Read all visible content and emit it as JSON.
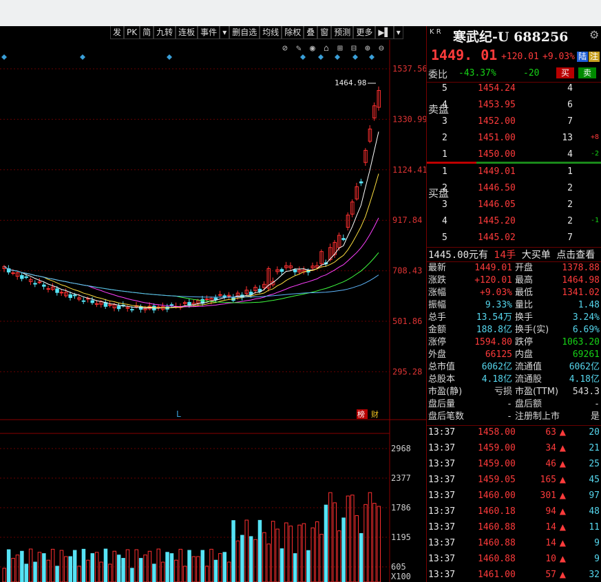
{
  "toolbar": [
    "发",
    "PK",
    "简",
    "九转",
    "连板",
    "事件",
    "▾",
    "删自选",
    "均线",
    "除权",
    "叠",
    "窗",
    "预测",
    "更多",
    "▶▌",
    "▾"
  ],
  "chart": {
    "price_axis": [
      "1537.56",
      "1330.99",
      "1124.41",
      "917.84",
      "708.43",
      "501.86",
      "295.28"
    ],
    "high_label": "1464.98",
    "marker_L": "L",
    "tag_bang": "榜",
    "tag_cai": "财",
    "vol_axis": [
      "2968",
      "2377",
      "1786",
      "1195",
      "605",
      "X100"
    ],
    "colors": {
      "up": "#ff3030",
      "down": "#56e3f5",
      "ma5": "#ffffff",
      "ma10": "#ffe040",
      "ma20": "#ff40ff",
      "ma60": "#40ff40",
      "ma120": "#5fb8ff"
    }
  },
  "header": {
    "kr": "K\nR",
    "name": "寒武纪-U 688256",
    "price": "1449. 01",
    "change": "+120.01",
    "pct": "+9.03%",
    "badge1": "陆",
    "badge2": "注",
    "wei_label": "委比",
    "wei_pct": "-43.37%",
    "wei_diff": "-20",
    "buy_btn": "买",
    "sell_btn": "卖"
  },
  "sell_label": "卖盘",
  "buy_label": "买盘",
  "sell_orders": [
    {
      "lvl": "5",
      "price": "1454.24",
      "vol": "4",
      "chg": ""
    },
    {
      "lvl": "4",
      "price": "1453.95",
      "vol": "6",
      "chg": ""
    },
    {
      "lvl": "3",
      "price": "1452.00",
      "vol": "7",
      "chg": ""
    },
    {
      "lvl": "2",
      "price": "1451.00",
      "vol": "13",
      "chg": "+8"
    },
    {
      "lvl": "1",
      "price": "1450.00",
      "vol": "4",
      "chg": "-2"
    }
  ],
  "buy_orders": [
    {
      "lvl": "1",
      "price": "1449.01",
      "vol": "1",
      "chg": ""
    },
    {
      "lvl": "2",
      "price": "1446.50",
      "vol": "2",
      "chg": ""
    },
    {
      "lvl": "3",
      "price": "1446.05",
      "vol": "2",
      "chg": ""
    },
    {
      "lvl": "4",
      "price": "1445.20",
      "vol": "2",
      "chg": "-1"
    },
    {
      "lvl": "5",
      "price": "1445.02",
      "vol": "7",
      "chg": ""
    }
  ],
  "big_order": {
    "price": "1445.00元有",
    "qty": "14手",
    "type": "大买单",
    "link": "点击查看"
  },
  "stats": [
    [
      "最新",
      "1449.01",
      "开盘",
      "1378.88"
    ],
    [
      "涨跌",
      "+120.01",
      "最高",
      "1464.98"
    ],
    [
      "涨幅",
      "+9.03%",
      "最低",
      "1341.02"
    ],
    [
      "振幅",
      "9.33%",
      "量比",
      "1.48"
    ],
    [
      "总手",
      "13.54万",
      "换手",
      "3.24%"
    ],
    [
      "金额",
      "188.8亿",
      "换手(实)",
      "6.69%"
    ],
    [
      "涨停",
      "1594.80",
      "跌停",
      "1063.20"
    ],
    [
      "外盘",
      "66125",
      "内盘",
      "69261"
    ],
    [
      "总市值",
      "6062亿",
      "流通值",
      "6062亿"
    ],
    [
      "总股本",
      "4.18亿",
      "流通股",
      "4.18亿"
    ],
    [
      "市盈(静)",
      "亏损",
      "市盈(TTM)",
      "543.3"
    ],
    [
      "盘后量",
      "-",
      "盘后额",
      "-"
    ],
    [
      "盘后笔数",
      "-",
      "注册制上市",
      "是"
    ]
  ],
  "ticks": [
    {
      "time": "13:37",
      "price": "1458.00",
      "vol": "63",
      "num": "20"
    },
    {
      "time": "13:37",
      "price": "1459.00",
      "vol": "34",
      "num": "21"
    },
    {
      "time": "13:37",
      "price": "1459.00",
      "vol": "46",
      "num": "25"
    },
    {
      "time": "13:37",
      "price": "1459.05",
      "vol": "165",
      "num": "45"
    },
    {
      "time": "13:37",
      "price": "1460.00",
      "vol": "301",
      "num": "97"
    },
    {
      "time": "13:37",
      "price": "1460.18",
      "vol": "94",
      "num": "48"
    },
    {
      "time": "13:37",
      "price": "1460.88",
      "vol": "14",
      "num": "11"
    },
    {
      "time": "13:37",
      "price": "1460.88",
      "vol": "14",
      "num": "9"
    },
    {
      "time": "13:37",
      "price": "1460.88",
      "vol": "10",
      "num": "9"
    },
    {
      "time": "13:37",
      "price": "1461.00",
      "vol": "57",
      "num": "32"
    }
  ]
}
